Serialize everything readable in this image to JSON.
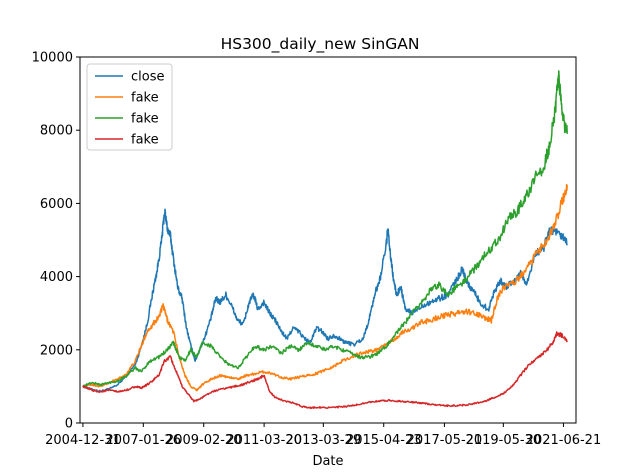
{
  "chart_data": {
    "type": "line",
    "title": "HS300_daily_new SinGAN",
    "xlabel": "Date",
    "ylabel": "",
    "ylim": [
      0,
      10000
    ],
    "xlim": [
      2004.9,
      2021.9
    ],
    "y_ticks": [
      0,
      2000,
      4000,
      6000,
      8000,
      10000
    ],
    "x_ticks": [
      {
        "label": "2004-12-31",
        "t": 2005.0
      },
      {
        "label": "2007-01-26",
        "t": 2007.07
      },
      {
        "label": "2009-02-20",
        "t": 2009.14
      },
      {
        "label": "2011-03-20",
        "t": 2011.21
      },
      {
        "label": "2013-03-29",
        "t": 2013.24
      },
      {
        "label": "2015-04-23",
        "t": 2015.31
      },
      {
        "label": "2017-05-21",
        "t": 2017.39
      },
      {
        "label": "2019-05-30",
        "t": 2019.41
      },
      {
        "label": "2021-06-21",
        "t": 2021.47
      }
    ],
    "legend_position": "top-left",
    "grid": false,
    "series": [
      {
        "name": "close",
        "color": "#1f77b4",
        "points": [
          [
            2005.0,
            1000
          ],
          [
            2005.3,
            920
          ],
          [
            2005.6,
            870
          ],
          [
            2005.9,
            930
          ],
          [
            2006.2,
            1050
          ],
          [
            2006.5,
            1300
          ],
          [
            2006.8,
            1600
          ],
          [
            2007.0,
            2100
          ],
          [
            2007.2,
            2700
          ],
          [
            2007.4,
            3600
          ],
          [
            2007.55,
            4200
          ],
          [
            2007.7,
            5000
          ],
          [
            2007.8,
            5800
          ],
          [
            2007.9,
            5300
          ],
          [
            2008.0,
            5100
          ],
          [
            2008.1,
            4500
          ],
          [
            2008.25,
            3700
          ],
          [
            2008.4,
            3400
          ],
          [
            2008.55,
            2600
          ],
          [
            2008.7,
            2100
          ],
          [
            2008.85,
            1700
          ],
          [
            2009.0,
            2000
          ],
          [
            2009.2,
            2400
          ],
          [
            2009.4,
            2900
          ],
          [
            2009.55,
            3400
          ],
          [
            2009.7,
            3300
          ],
          [
            2009.9,
            3500
          ],
          [
            2010.1,
            3200
          ],
          [
            2010.3,
            2800
          ],
          [
            2010.5,
            2700
          ],
          [
            2010.7,
            3300
          ],
          [
            2010.85,
            3500
          ],
          [
            2011.0,
            3100
          ],
          [
            2011.2,
            3300
          ],
          [
            2011.4,
            3000
          ],
          [
            2011.6,
            2800
          ],
          [
            2011.8,
            2500
          ],
          [
            2012.0,
            2300
          ],
          [
            2012.2,
            2600
          ],
          [
            2012.4,
            2500
          ],
          [
            2012.6,
            2300
          ],
          [
            2012.8,
            2200
          ],
          [
            2013.0,
            2600
          ],
          [
            2013.2,
            2500
          ],
          [
            2013.4,
            2300
          ],
          [
            2013.6,
            2400
          ],
          [
            2013.8,
            2300
          ],
          [
            2014.0,
            2200
          ],
          [
            2014.3,
            2150
          ],
          [
            2014.6,
            2300
          ],
          [
            2014.8,
            2800
          ],
          [
            2015.0,
            3500
          ],
          [
            2015.2,
            4000
          ],
          [
            2015.4,
            4900
          ],
          [
            2015.45,
            5300
          ],
          [
            2015.55,
            4500
          ],
          [
            2015.65,
            3900
          ],
          [
            2015.75,
            3500
          ],
          [
            2015.9,
            3700
          ],
          [
            2016.05,
            3100
          ],
          [
            2016.3,
            3000
          ],
          [
            2016.6,
            3200
          ],
          [
            2016.9,
            3300
          ],
          [
            2017.2,
            3400
          ],
          [
            2017.5,
            3500
          ],
          [
            2017.8,
            3900
          ],
          [
            2018.0,
            4200
          ],
          [
            2018.2,
            3800
          ],
          [
            2018.4,
            3600
          ],
          [
            2018.6,
            3300
          ],
          [
            2018.9,
            3100
          ],
          [
            2019.1,
            3600
          ],
          [
            2019.3,
            3900
          ],
          [
            2019.5,
            3700
          ],
          [
            2019.8,
            3900
          ],
          [
            2020.0,
            4100
          ],
          [
            2020.2,
            3800
          ],
          [
            2020.5,
            4600
          ],
          [
            2020.8,
            4800
          ],
          [
            2021.0,
            5300
          ],
          [
            2021.2,
            5200
          ],
          [
            2021.4,
            5100
          ],
          [
            2021.6,
            4900
          ]
        ]
      },
      {
        "name": "fake",
        "color": "#ff7f0e",
        "points": [
          [
            2005.0,
            1000
          ],
          [
            2005.3,
            1050
          ],
          [
            2005.6,
            1000
          ],
          [
            2005.9,
            1100
          ],
          [
            2006.2,
            1200
          ],
          [
            2006.5,
            1350
          ],
          [
            2006.8,
            1700
          ],
          [
            2007.0,
            2100
          ],
          [
            2007.2,
            2500
          ],
          [
            2007.4,
            2700
          ],
          [
            2007.6,
            2900
          ],
          [
            2007.75,
            3200
          ],
          [
            2007.9,
            2800
          ],
          [
            2008.1,
            2500
          ],
          [
            2008.3,
            1800
          ],
          [
            2008.5,
            1300
          ],
          [
            2008.7,
            1000
          ],
          [
            2008.9,
            900
          ],
          [
            2009.1,
            1050
          ],
          [
            2009.4,
            1200
          ],
          [
            2009.7,
            1300
          ],
          [
            2010.0,
            1250
          ],
          [
            2010.3,
            1200
          ],
          [
            2010.6,
            1300
          ],
          [
            2010.9,
            1350
          ],
          [
            2011.2,
            1400
          ],
          [
            2011.5,
            1350
          ],
          [
            2011.8,
            1250
          ],
          [
            2012.1,
            1200
          ],
          [
            2012.4,
            1250
          ],
          [
            2012.7,
            1300
          ],
          [
            2013.0,
            1350
          ],
          [
            2013.3,
            1450
          ],
          [
            2013.6,
            1550
          ],
          [
            2013.9,
            1700
          ],
          [
            2014.2,
            1800
          ],
          [
            2014.5,
            1900
          ],
          [
            2014.8,
            1950
          ],
          [
            2015.1,
            2000
          ],
          [
            2015.4,
            2150
          ],
          [
            2015.7,
            2300
          ],
          [
            2016.0,
            2500
          ],
          [
            2016.3,
            2600
          ],
          [
            2016.6,
            2750
          ],
          [
            2016.9,
            2800
          ],
          [
            2017.2,
            2900
          ],
          [
            2017.5,
            2950
          ],
          [
            2017.8,
            3000
          ],
          [
            2018.1,
            3050
          ],
          [
            2018.4,
            3000
          ],
          [
            2018.7,
            2900
          ],
          [
            2019.0,
            2800
          ],
          [
            2019.2,
            3400
          ],
          [
            2019.4,
            3700
          ],
          [
            2019.7,
            3800
          ],
          [
            2020.0,
            4000
          ],
          [
            2020.3,
            4300
          ],
          [
            2020.6,
            4700
          ],
          [
            2020.9,
            5000
          ],
          [
            2021.2,
            5500
          ],
          [
            2021.45,
            6100
          ],
          [
            2021.6,
            6500
          ]
        ]
      },
      {
        "name": "fake",
        "color": "#2ca02c",
        "points": [
          [
            2005.0,
            1000
          ],
          [
            2005.3,
            1100
          ],
          [
            2005.6,
            1050
          ],
          [
            2005.9,
            1100
          ],
          [
            2006.2,
            1150
          ],
          [
            2006.5,
            1300
          ],
          [
            2006.8,
            1500
          ],
          [
            2007.0,
            1400
          ],
          [
            2007.3,
            1700
          ],
          [
            2007.6,
            1800
          ],
          [
            2007.9,
            2000
          ],
          [
            2008.1,
            2200
          ],
          [
            2008.3,
            1800
          ],
          [
            2008.5,
            1700
          ],
          [
            2008.7,
            2000
          ],
          [
            2008.9,
            1800
          ],
          [
            2009.1,
            2200
          ],
          [
            2009.4,
            2100
          ],
          [
            2009.7,
            1800
          ],
          [
            2010.0,
            1600
          ],
          [
            2010.3,
            1500
          ],
          [
            2010.6,
            1800
          ],
          [
            2010.9,
            2100
          ],
          [
            2011.2,
            2000
          ],
          [
            2011.5,
            2100
          ],
          [
            2011.8,
            1900
          ],
          [
            2012.1,
            2100
          ],
          [
            2012.4,
            2000
          ],
          [
            2012.7,
            2200
          ],
          [
            2013.0,
            2100
          ],
          [
            2013.3,
            2000
          ],
          [
            2013.6,
            2100
          ],
          [
            2013.9,
            2000
          ],
          [
            2014.2,
            1900
          ],
          [
            2014.5,
            1800
          ],
          [
            2014.8,
            1800
          ],
          [
            2015.1,
            1900
          ],
          [
            2015.4,
            2100
          ],
          [
            2015.7,
            2400
          ],
          [
            2016.0,
            2700
          ],
          [
            2016.3,
            3000
          ],
          [
            2016.6,
            3300
          ],
          [
            2016.9,
            3600
          ],
          [
            2017.2,
            3800
          ],
          [
            2017.5,
            3500
          ],
          [
            2017.8,
            3700
          ],
          [
            2018.1,
            3900
          ],
          [
            2018.4,
            4200
          ],
          [
            2018.7,
            4500
          ],
          [
            2019.0,
            4800
          ],
          [
            2019.3,
            5100
          ],
          [
            2019.6,
            5600
          ],
          [
            2019.9,
            5800
          ],
          [
            2020.2,
            6200
          ],
          [
            2020.5,
            6700
          ],
          [
            2020.8,
            7000
          ],
          [
            2021.0,
            7600
          ],
          [
            2021.2,
            8600
          ],
          [
            2021.3,
            9500
          ],
          [
            2021.45,
            8300
          ],
          [
            2021.6,
            7900
          ]
        ]
      },
      {
        "name": "fake",
        "color": "#d62728",
        "points": [
          [
            2005.0,
            1000
          ],
          [
            2005.3,
            900
          ],
          [
            2005.6,
            850
          ],
          [
            2005.9,
            900
          ],
          [
            2006.2,
            850
          ],
          [
            2006.5,
            900
          ],
          [
            2006.8,
            1000
          ],
          [
            2007.0,
            950
          ],
          [
            2007.3,
            1100
          ],
          [
            2007.6,
            1300
          ],
          [
            2007.8,
            1700
          ],
          [
            2008.0,
            1800
          ],
          [
            2008.2,
            1400
          ],
          [
            2008.4,
            1000
          ],
          [
            2008.6,
            800
          ],
          [
            2008.8,
            600
          ],
          [
            2009.0,
            650
          ],
          [
            2009.3,
            800
          ],
          [
            2009.6,
            900
          ],
          [
            2009.9,
            950
          ],
          [
            2010.2,
            1000
          ],
          [
            2010.5,
            1050
          ],
          [
            2010.8,
            1150
          ],
          [
            2011.0,
            1200
          ],
          [
            2011.2,
            1300
          ],
          [
            2011.4,
            850
          ],
          [
            2011.6,
            700
          ],
          [
            2011.9,
            600
          ],
          [
            2012.2,
            550
          ],
          [
            2012.5,
            450
          ],
          [
            2012.8,
            420
          ],
          [
            2013.1,
            430
          ],
          [
            2013.4,
            420
          ],
          [
            2013.7,
            430
          ],
          [
            2014.0,
            450
          ],
          [
            2014.3,
            480
          ],
          [
            2014.6,
            540
          ],
          [
            2014.9,
            580
          ],
          [
            2015.2,
            600
          ],
          [
            2015.5,
            620
          ],
          [
            2015.8,
            600
          ],
          [
            2016.1,
            580
          ],
          [
            2016.4,
            560
          ],
          [
            2016.7,
            540
          ],
          [
            2017.0,
            500
          ],
          [
            2017.3,
            480
          ],
          [
            2017.6,
            470
          ],
          [
            2017.9,
            480
          ],
          [
            2018.2,
            500
          ],
          [
            2018.5,
            550
          ],
          [
            2018.8,
            600
          ],
          [
            2019.1,
            700
          ],
          [
            2019.4,
            800
          ],
          [
            2019.7,
            1000
          ],
          [
            2020.0,
            1300
          ],
          [
            2020.3,
            1600
          ],
          [
            2020.6,
            1800
          ],
          [
            2020.9,
            2000
          ],
          [
            2021.1,
            2200
          ],
          [
            2021.25,
            2450
          ],
          [
            2021.4,
            2400
          ],
          [
            2021.6,
            2250
          ]
        ]
      }
    ]
  }
}
